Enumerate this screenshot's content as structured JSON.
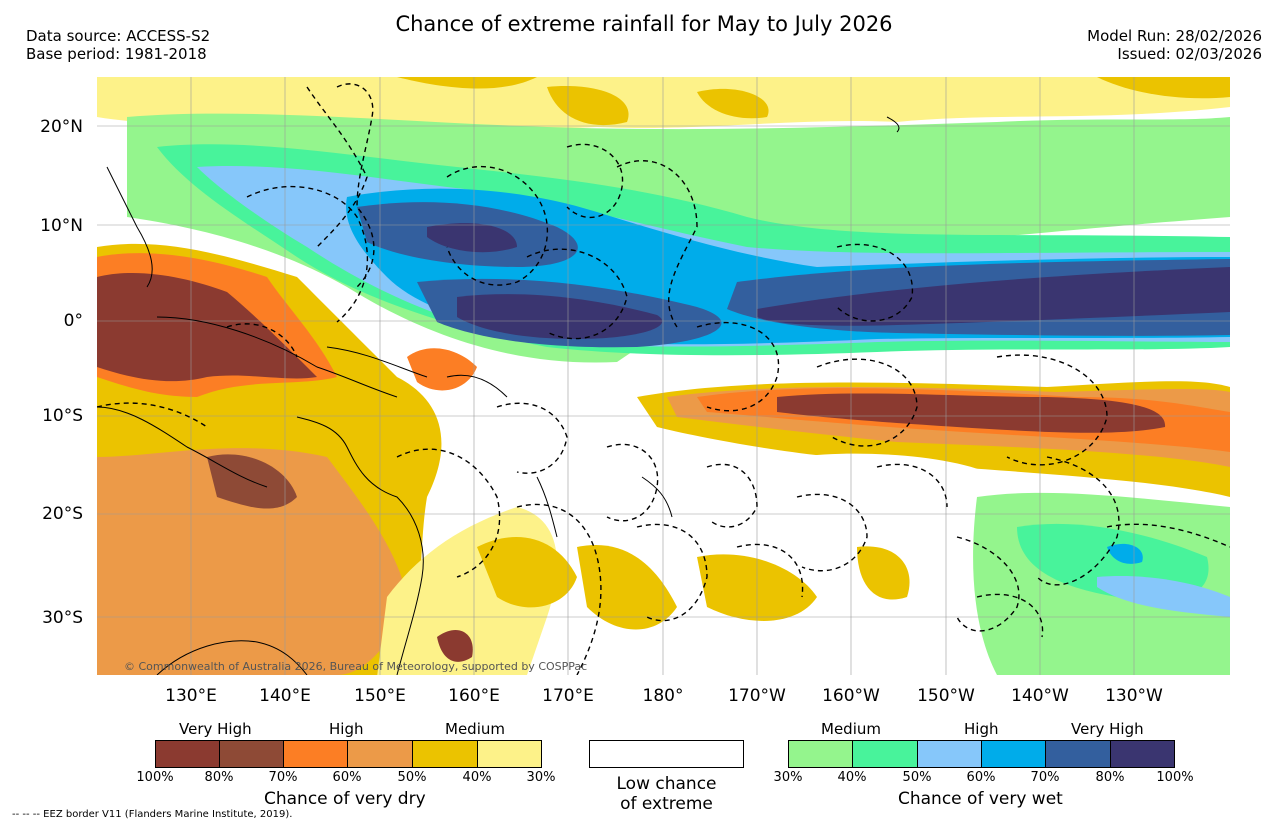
{
  "header": {
    "title": "Chance of extreme rainfall for May to July 2026",
    "data_source": "Data source: ACCESS-S2",
    "base_period": "Base period: 1981-2018",
    "model_run": "Model Run: 28/02/2026",
    "issued": "Issued: 02/03/2026"
  },
  "map": {
    "lat_labels": [
      "20°N",
      "10°N",
      "0°",
      "10°S",
      "20°S",
      "30°S"
    ],
    "lon_labels": [
      "130°E",
      "140°E",
      "150°E",
      "160°E",
      "170°E",
      "180°",
      "170°W",
      "160°W",
      "150°W",
      "140°W",
      "130°W"
    ],
    "copyright": "© Commonwealth of Australia 2026, Bureau of Meteorology, supported by COSPPac"
  },
  "legend": {
    "dry": {
      "groups": [
        "Very High",
        "High",
        "Medium"
      ],
      "ticks": [
        "100%",
        "80%",
        "70%",
        "60%",
        "50%",
        "40%",
        "30%"
      ],
      "caption": "Chance of very dry",
      "colors": [
        "#8b3a30",
        "#8e4a36",
        "#fc7e24",
        "#ec9a48",
        "#ebc300",
        "#fdf289"
      ]
    },
    "low": {
      "line1": "Low chance",
      "line2": "of extreme",
      "color": "#ffffff"
    },
    "wet": {
      "groups": [
        "Medium",
        "High",
        "Very High"
      ],
      "ticks": [
        "30%",
        "40%",
        "50%",
        "60%",
        "70%",
        "80%",
        "100%"
      ],
      "caption": "Chance of very wet",
      "colors": [
        "#94f58d",
        "#48f39b",
        "#86c7fa",
        "#00acea",
        "#335f9e",
        "#3a3570"
      ]
    },
    "eez_note": "-- -- -- EEZ border V11 (Flanders Marine Institute, 2019)."
  }
}
